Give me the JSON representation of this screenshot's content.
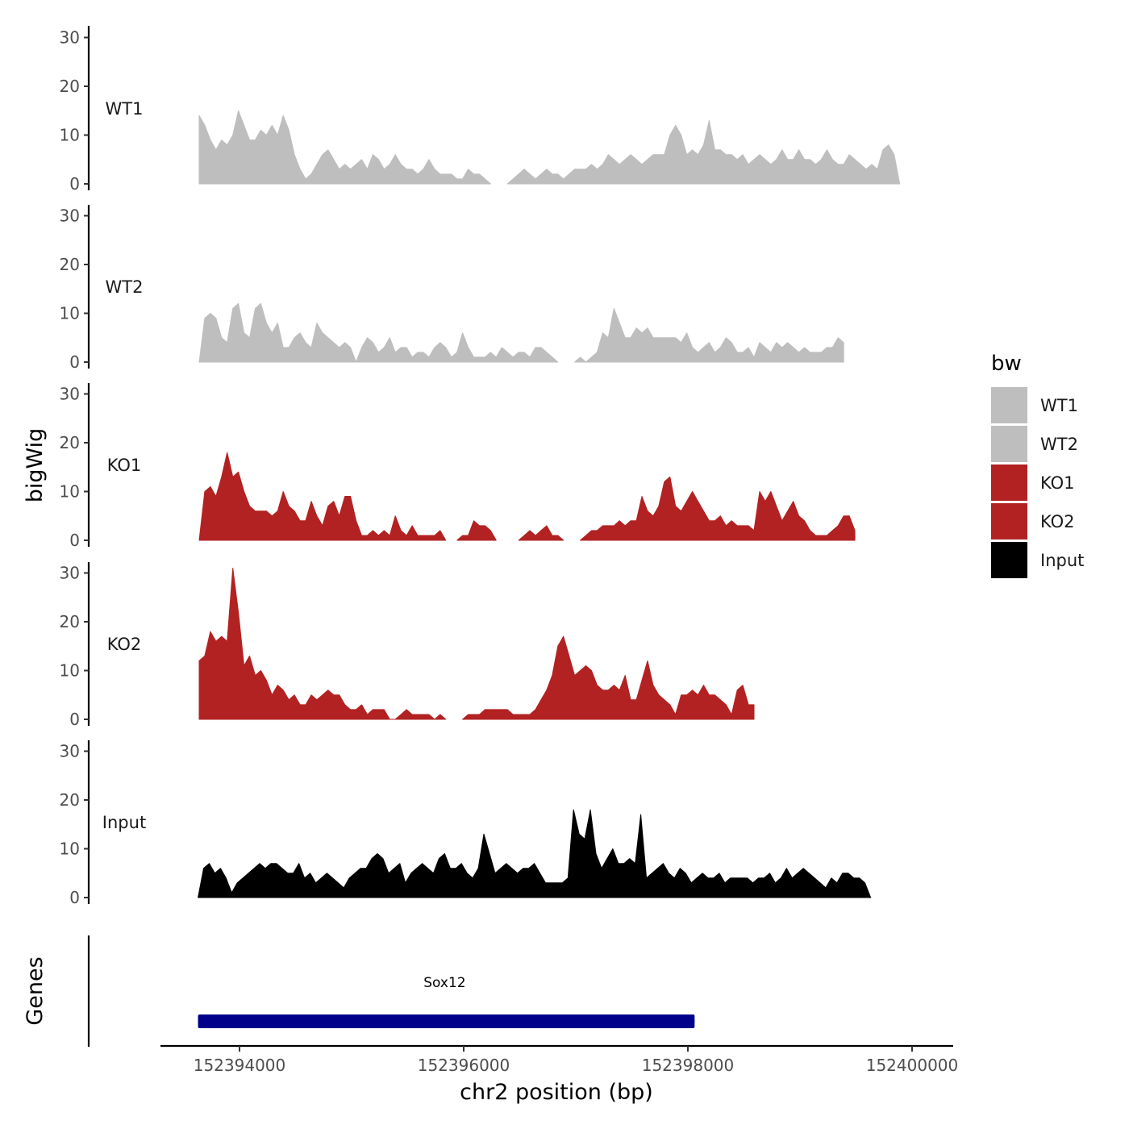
{
  "chart_data": {
    "type": "area",
    "chromosome": "chr2",
    "xlabel": "chr2 position (bp)",
    "ylabel": "bigWig",
    "gene_track_label": "Genes",
    "xlim": [
      152393500,
      152400200
    ],
    "ylim": [
      0,
      31
    ],
    "x_ticks": [
      152394000,
      152396000,
      152398000,
      152400000
    ],
    "x_tick_labels": [
      "152394000",
      "152396000",
      "152398000",
      "152400000"
    ],
    "y_ticks": [
      0,
      10,
      20,
      30
    ],
    "y_tick_labels": [
      "0",
      "10",
      "20",
      "30"
    ],
    "legend": {
      "title": "bw",
      "entries": [
        {
          "label": "WT1",
          "color": "#bebebe"
        },
        {
          "label": "WT2",
          "color": "#bebebe"
        },
        {
          "label": "KO1",
          "color": "#b22222"
        },
        {
          "label": "KO2",
          "color": "#b22222"
        },
        {
          "label": "Input",
          "color": "#000000"
        }
      ]
    },
    "genes": [
      {
        "name": "Sox12",
        "start": 152393630,
        "end": 152398060,
        "color": "#00008b"
      }
    ],
    "series": [
      {
        "name": "WT1",
        "color": "#bebebe",
        "start": 152393640,
        "step": 50,
        "values": [
          14,
          12,
          9,
          7,
          9,
          8,
          10,
          15,
          12,
          9,
          9,
          11,
          10,
          12,
          10,
          14,
          11,
          6,
          3,
          1,
          2,
          4,
          6,
          7,
          5,
          3,
          4,
          3,
          4,
          5,
          3,
          6,
          5,
          3,
          4,
          6,
          4,
          3,
          3,
          2,
          3,
          5,
          3,
          2,
          2,
          2,
          1,
          1,
          3,
          2,
          2,
          1,
          0,
          null,
          null,
          0,
          1,
          2,
          3,
          2,
          1,
          2,
          3,
          2,
          2,
          1,
          2,
          3,
          3,
          3,
          4,
          3,
          4,
          6,
          5,
          4,
          5,
          6,
          5,
          4,
          5,
          6,
          6,
          6,
          10,
          12,
          10,
          6,
          7,
          6,
          8,
          13,
          7,
          7,
          6,
          6,
          5,
          6,
          4,
          5,
          6,
          5,
          4,
          5,
          7,
          5,
          5,
          7,
          5,
          5,
          4,
          5,
          7,
          5,
          4,
          4,
          6,
          5,
          4,
          3,
          4,
          3,
          7,
          8,
          6,
          0
        ]
      },
      {
        "name": "WT2",
        "color": "#bebebe",
        "start": 152393640,
        "step": 50,
        "values": [
          0,
          9,
          10,
          9,
          5,
          4,
          11,
          12,
          6,
          5,
          11,
          12,
          8,
          6,
          8,
          3,
          3,
          5,
          6,
          4,
          3,
          8,
          6,
          5,
          4,
          3,
          4,
          3,
          0,
          3,
          5,
          4,
          2,
          3,
          5,
          2,
          3,
          3,
          1,
          2,
          2,
          1,
          3,
          4,
          3,
          1,
          2,
          6,
          3,
          1,
          1,
          1,
          2,
          1,
          3,
          2,
          1,
          2,
          2,
          1,
          3,
          3,
          2,
          1,
          0,
          null,
          null,
          0,
          1,
          0,
          1,
          2,
          6,
          5,
          11,
          8,
          5,
          5,
          7,
          6,
          7,
          5,
          5,
          5,
          5,
          5,
          4,
          6,
          3,
          2,
          3,
          4,
          2,
          3,
          5,
          4,
          2,
          2,
          3,
          1,
          4,
          3,
          2,
          4,
          3,
          4,
          3,
          2,
          3,
          2,
          2,
          2,
          3,
          3,
          5,
          4
        ]
      },
      {
        "name": "KO1",
        "color": "#b22222",
        "start": 152393640,
        "step": 50,
        "values": [
          0,
          10,
          11,
          9,
          13,
          18,
          13,
          14,
          10,
          7,
          6,
          6,
          6,
          5,
          6,
          10,
          7,
          6,
          4,
          4,
          8,
          5,
          3,
          7,
          8,
          5,
          9,
          9,
          4,
          1,
          1,
          2,
          1,
          2,
          1,
          5,
          2,
          1,
          3,
          1,
          1,
          1,
          1,
          2,
          0,
          null,
          0,
          1,
          1,
          4,
          3,
          3,
          2,
          0,
          null,
          null,
          null,
          0,
          1,
          2,
          1,
          2,
          3,
          1,
          1,
          0,
          null,
          null,
          0,
          1,
          2,
          2,
          3,
          3,
          3,
          4,
          3,
          4,
          4,
          9,
          6,
          5,
          7,
          12,
          13,
          7,
          6,
          8,
          10,
          8,
          6,
          4,
          4,
          5,
          3,
          4,
          3,
          3,
          3,
          2,
          10,
          8,
          10,
          7,
          4,
          6,
          8,
          5,
          4,
          2,
          1,
          1,
          1,
          2,
          3,
          5,
          5,
          2
        ]
      },
      {
        "name": "KO2",
        "color": "#b22222",
        "start": 152393640,
        "step": 50,
        "values": [
          12,
          13,
          18,
          16,
          17,
          16,
          31,
          22,
          11,
          13,
          9,
          10,
          8,
          5,
          7,
          6,
          4,
          5,
          3,
          3,
          5,
          4,
          5,
          6,
          5,
          5,
          3,
          2,
          2,
          3,
          1,
          2,
          2,
          2,
          0,
          0,
          1,
          2,
          1,
          1,
          1,
          1,
          0,
          1,
          0,
          null,
          null,
          0,
          1,
          1,
          1,
          2,
          2,
          2,
          2,
          2,
          1,
          1,
          1,
          1,
          2,
          4,
          6,
          9,
          15,
          17,
          13,
          9,
          10,
          11,
          10,
          7,
          6,
          6,
          7,
          6,
          9,
          4,
          4,
          8,
          12,
          7,
          5,
          4,
          3,
          1,
          5,
          5,
          6,
          5,
          7,
          5,
          5,
          4,
          3,
          1,
          6,
          7,
          3,
          3
        ]
      },
      {
        "name": "Input",
        "color": "#000000",
        "start": 152393630,
        "step": 50,
        "values": [
          0,
          6,
          7,
          5,
          6,
          4,
          1,
          3,
          4,
          5,
          6,
          7,
          6,
          7,
          7,
          6,
          5,
          5,
          7,
          4,
          5,
          3,
          4,
          5,
          4,
          3,
          2,
          4,
          5,
          6,
          6,
          8,
          9,
          8,
          5,
          6,
          7,
          3,
          5,
          6,
          7,
          6,
          5,
          8,
          9,
          6,
          6,
          7,
          5,
          4,
          6,
          13,
          9,
          5,
          6,
          7,
          6,
          5,
          6,
          6,
          7,
          5,
          3,
          3,
          3,
          3,
          4,
          18,
          13,
          12,
          18,
          9,
          6,
          8,
          10,
          7,
          7,
          8,
          7,
          17,
          4,
          5,
          6,
          7,
          5,
          4,
          6,
          5,
          3,
          4,
          5,
          4,
          4,
          5,
          3,
          4,
          4,
          4,
          4,
          3,
          4,
          4,
          5,
          3,
          4,
          6,
          4,
          5,
          6,
          5,
          4,
          3,
          2,
          4,
          3,
          5,
          5,
          4,
          4,
          3,
          0
        ]
      }
    ]
  }
}
